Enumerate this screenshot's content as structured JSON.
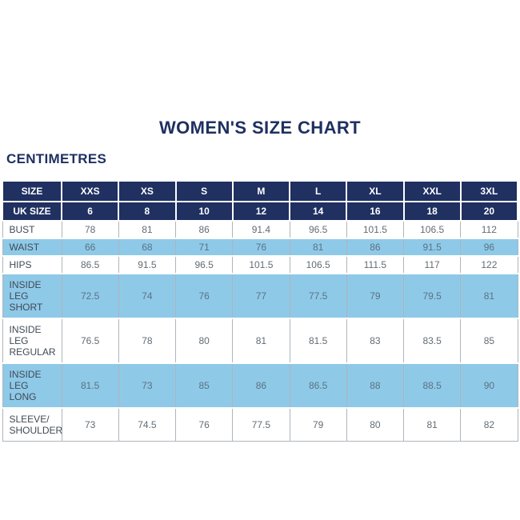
{
  "page": {
    "title": "WOMEN'S SIZE CHART",
    "unit_label": "CENTIMETRES"
  },
  "colors": {
    "navy_header_bg": "#1f3061",
    "title_text": "#1f3061",
    "highlight_row_bg": "#8fc9e8",
    "body_text": "#636c73",
    "label_text": "#3f4a55",
    "border": "#aeb5bb",
    "header_text": "#ffffff"
  },
  "chart_data": {
    "type": "table",
    "title": "WOMEN'S SIZE CHART",
    "unit": "CENTIMETRES",
    "header_rows": [
      {
        "label": "SIZE",
        "values": [
          "XXS",
          "XS",
          "S",
          "M",
          "L",
          "XL",
          "XXL",
          "3XL"
        ]
      },
      {
        "label": "UK SIZE",
        "values": [
          "6",
          "8",
          "10",
          "12",
          "14",
          "16",
          "18",
          "20"
        ]
      }
    ],
    "rows": [
      {
        "label": "BUST",
        "values": [
          "78",
          "81",
          "86",
          "91.4",
          "96.5",
          "101.5",
          "106.5",
          "112"
        ],
        "highlight": false
      },
      {
        "label": "WAIST",
        "values": [
          "66",
          "68",
          "71",
          "76",
          "81",
          "86",
          "91.5",
          "96"
        ],
        "highlight": true
      },
      {
        "label": "HIPS",
        "values": [
          "86.5",
          "91.5",
          "96.5",
          "101.5",
          "106.5",
          "111.5",
          "117",
          "122"
        ],
        "highlight": false
      },
      {
        "label": "INSIDE LEG SHORT",
        "values": [
          "72.5",
          "74",
          "76",
          "77",
          "77.5",
          "79",
          "79.5",
          "81"
        ],
        "highlight": true
      },
      {
        "label": "INSIDE LEG REGULAR",
        "values": [
          "76.5",
          "78",
          "80",
          "81",
          "81.5",
          "83",
          "83.5",
          "85"
        ],
        "highlight": false
      },
      {
        "label": "INSIDE LEG LONG",
        "values": [
          "81.5",
          "73",
          "85",
          "86",
          "86.5",
          "88",
          "88.5",
          "90"
        ],
        "highlight": true
      },
      {
        "label": "SLEEVE/ SHOULDER",
        "values": [
          "73",
          "74.5",
          "76",
          "77.5",
          "79",
          "80",
          "81",
          "82"
        ],
        "highlight": false
      }
    ]
  }
}
